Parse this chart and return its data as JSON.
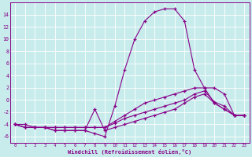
{
  "xlabel": "Windchill (Refroidissement éolien,°C)",
  "bg_color": "#c8ecec",
  "grid_color": "#aacccc",
  "line_color": "#880088",
  "xlim": [
    -0.5,
    23.5
  ],
  "ylim": [
    -7,
    16
  ],
  "yticks": [
    -6,
    -4,
    -2,
    0,
    2,
    4,
    6,
    8,
    10,
    12,
    14
  ],
  "xticks": [
    0,
    1,
    2,
    3,
    4,
    5,
    6,
    7,
    8,
    9,
    10,
    11,
    12,
    13,
    14,
    15,
    16,
    17,
    18,
    19,
    20,
    21,
    22,
    23
  ],
  "series": [
    {
      "x": [
        0,
        1,
        2,
        3,
        4,
        5,
        6,
        7,
        8,
        9,
        10,
        11,
        12,
        13,
        14,
        15,
        16,
        17,
        18,
        19,
        20,
        21,
        22,
        23
      ],
      "y": [
        -4,
        -4,
        -4.5,
        -4.5,
        -5,
        -5,
        -5,
        -5,
        -5.5,
        -6,
        -1,
        5,
        10,
        13,
        14.5,
        15,
        15,
        13,
        5,
        2,
        2,
        1,
        -2.5,
        -2.5
      ]
    },
    {
      "x": [
        0,
        1,
        2,
        3,
        4,
        5,
        6,
        7,
        8,
        9,
        10,
        11,
        12,
        13,
        14,
        15,
        16,
        17,
        18,
        19,
        20,
        21,
        22,
        23
      ],
      "y": [
        -4,
        -4.5,
        -4.5,
        -4.5,
        -4.5,
        -4.5,
        -4.5,
        -4.5,
        -4.5,
        -4.5,
        -3.5,
        -2.5,
        -1.5,
        -0.5,
        0,
        0.5,
        1,
        1.5,
        2,
        2,
        -0.5,
        -1.5,
        -2.5,
        -2.5
      ]
    },
    {
      "x": [
        0,
        1,
        2,
        3,
        4,
        5,
        6,
        7,
        8,
        9,
        10,
        11,
        12,
        13,
        14,
        15,
        16,
        17,
        18,
        19,
        20,
        21,
        22,
        23
      ],
      "y": [
        -4,
        -4.5,
        -4.5,
        -4.5,
        -4.5,
        -4.5,
        -4.5,
        -4.5,
        -4.5,
        -4.5,
        -3.8,
        -3,
        -2.5,
        -2,
        -1.5,
        -1,
        -0.5,
        0,
        1,
        1.5,
        -0.3,
        -1,
        -2.5,
        -2.5
      ]
    },
    {
      "x": [
        0,
        1,
        2,
        3,
        4,
        5,
        6,
        7,
        8,
        9,
        10,
        11,
        12,
        13,
        14,
        15,
        16,
        17,
        18,
        19,
        20,
        21,
        22,
        23
      ],
      "y": [
        -4,
        -4.5,
        -4.5,
        -4.5,
        -5,
        -5,
        -5,
        -5,
        -1.5,
        -5,
        -4.5,
        -4,
        -3.5,
        -3,
        -2.5,
        -2,
        -1.5,
        -0.5,
        0.5,
        1,
        -0.5,
        -1.5,
        -2.5,
        -2.5
      ]
    }
  ]
}
